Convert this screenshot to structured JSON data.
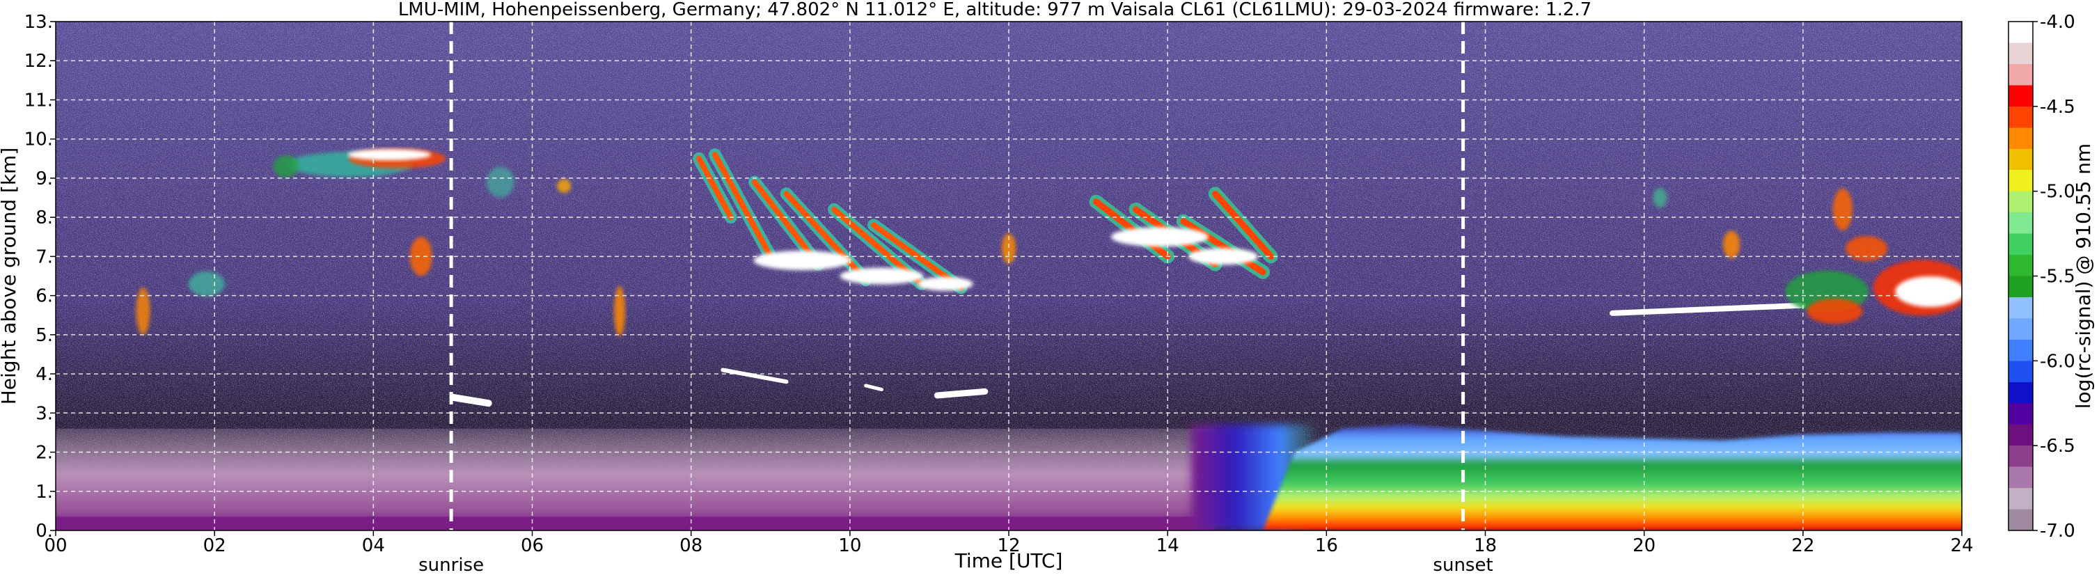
{
  "chart_data": {
    "type": "heatmap",
    "title": "LMU-MIM, Hohenpeissenberg, Germany; 47.802° N 11.012° E, altitude: 977 m    Vaisala CL61 (CL61LMU): 29-03-2024    firmware: 1.2.7",
    "xlabel": "Time [UTC]",
    "ylabel": "Height above ground [km]",
    "xlim": [
      0,
      24
    ],
    "ylim": [
      0,
      13
    ],
    "x_ticks": [
      0,
      2,
      4,
      6,
      8,
      10,
      12,
      14,
      16,
      18,
      20,
      22,
      24
    ],
    "x_tick_labels": [
      "00",
      "02",
      "04",
      "06",
      "08",
      "10",
      "12",
      "14",
      "16",
      "18",
      "20",
      "22",
      "24"
    ],
    "y_ticks": [
      0,
      1,
      2,
      3,
      4,
      5,
      6,
      7,
      8,
      9,
      10,
      11,
      12,
      13
    ],
    "y_tick_labels": [
      "0.",
      "1.",
      "2.",
      "3.",
      "4.",
      "5.",
      "6.",
      "7.",
      "8.",
      "9.",
      "10.",
      "11.",
      "12.",
      "13."
    ],
    "grid": true,
    "events": [
      {
        "label": "sunrise",
        "time": 4.98
      },
      {
        "label": "sunset",
        "time": 17.72
      }
    ],
    "colorbar": {
      "label": "log(rc-signal) @ 910.55 nm",
      "range": [
        -7.0,
        -4.0
      ],
      "ticks": [
        -4.0,
        -4.5,
        -5.0,
        -5.5,
        -6.0,
        -6.5,
        -7.0
      ],
      "tick_labels": [
        "-4.0",
        "-4.5",
        "-5.0",
        "-5.5",
        "-6.0",
        "-6.5",
        "-7.0"
      ],
      "colors": [
        "#a08aa0",
        "#c4b0c4",
        "#ab78ab",
        "#8c3f8c",
        "#6e0f80",
        "#5000a0",
        "#1010c8",
        "#2050f0",
        "#4080ff",
        "#70a8ff",
        "#90c0ff",
        "#20a020",
        "#30b830",
        "#40d060",
        "#80e890",
        "#b0f070",
        "#f0f020",
        "#f0c000",
        "#ff8800",
        "#ff4400",
        "#ff0000",
        "#f0a8a8",
        "#e8d4d4",
        "#ffffff"
      ]
    },
    "features": [
      {
        "name": "boundary-layer",
        "x_range": [
          0,
          24
        ],
        "height_km": [
          0,
          2.7
        ],
        "level": [
          -6.5,
          -4.8
        ]
      },
      {
        "name": "low-cloud",
        "x_range": [
          5.0,
          6.5
        ],
        "height_km": [
          3.2,
          4.1
        ],
        "level": -4.0
      },
      {
        "name": "cirrus-morning",
        "x_range": [
          2.7,
          5.0
        ],
        "height_km": [
          8.8,
          9.9
        ],
        "level": -4.2
      },
      {
        "name": "cirrus-midday",
        "x_range": [
          7.8,
          11.5
        ],
        "height_km": [
          6.2,
          9.6
        ],
        "level": -4.1
      },
      {
        "name": "cirrus-afternoon",
        "x_range": [
          13.0,
          15.4
        ],
        "height_km": [
          6.5,
          8.4
        ],
        "level": -4.1
      },
      {
        "name": "evening-cloud-layer",
        "x_range": [
          19.6,
          24
        ],
        "height_km": [
          5.0,
          8.8
        ],
        "level": -4.3
      }
    ]
  }
}
